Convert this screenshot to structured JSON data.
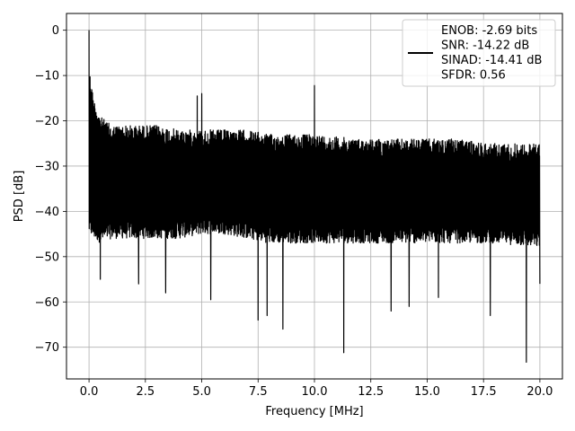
{
  "chart_data": {
    "type": "line",
    "xlabel": "Frequency [MHz]",
    "ylabel": "PSD [dB]",
    "xlim": [
      -1.0,
      21.0
    ],
    "ylim": [
      -77.0,
      3.7
    ],
    "x_ticks": [
      0.0,
      2.5,
      5.0,
      7.5,
      10.0,
      12.5,
      15.0,
      17.5,
      20.0
    ],
    "x_tick_labels": [
      "0.0",
      "2.5",
      "5.0",
      "7.5",
      "10.0",
      "12.5",
      "15.0",
      "17.5",
      "20.0"
    ],
    "y_ticks": [
      0,
      -10,
      -20,
      -30,
      -40,
      -50,
      -60,
      -70
    ],
    "y_tick_labels": [
      "0",
      "−10",
      "−20",
      "−30",
      "−40",
      "−50",
      "−60",
      "−70"
    ],
    "grid": true,
    "legend_position": "top-right",
    "legend_lines": [
      "ENOB: -2.69 bits",
      "SNR: -14.22 dB",
      "SINAD: -14.41 dB",
      "SFDR: 0.56"
    ],
    "series": [
      {
        "color": "#000000",
        "style": "noise-band",
        "x_range": [
          0.0,
          20.0
        ],
        "envelope": {
          "x": [
            0.0,
            0.2,
            0.5,
            1.0,
            2.0,
            3.0,
            4.0,
            5.0,
            6.0,
            7.0,
            8.0,
            10.0,
            12.0,
            14.0,
            16.0,
            18.0,
            20.0
          ],
          "upper": [
            -8,
            -15,
            -19,
            -21,
            -21,
            -21,
            -22,
            -22,
            -22,
            -22,
            -23,
            -23,
            -24,
            -24,
            -24,
            -25,
            -25
          ],
          "lower": [
            -45,
            -46,
            -47,
            -46,
            -46,
            -46,
            -46,
            -45,
            -45,
            -46,
            -47,
            -47,
            -47,
            -47,
            -47,
            -47,
            -48
          ]
        },
        "peaks": [
          {
            "x": 0.0,
            "y": 0.0
          },
          {
            "x": 4.8,
            "y": -14.5
          },
          {
            "x": 5.0,
            "y": -14.0
          },
          {
            "x": 10.0,
            "y": -12.2
          }
        ],
        "dips": [
          {
            "x": 0.5,
            "y": -55.0
          },
          {
            "x": 2.2,
            "y": -56.0
          },
          {
            "x": 3.4,
            "y": -58.0
          },
          {
            "x": 5.4,
            "y": -59.5
          },
          {
            "x": 7.5,
            "y": -64.0
          },
          {
            "x": 7.9,
            "y": -63.0
          },
          {
            "x": 8.6,
            "y": -66.0
          },
          {
            "x": 11.3,
            "y": -71.2
          },
          {
            "x": 13.4,
            "y": -62.0
          },
          {
            "x": 14.2,
            "y": -61.0
          },
          {
            "x": 15.5,
            "y": -59.0
          },
          {
            "x": 17.8,
            "y": -63.0
          },
          {
            "x": 19.4,
            "y": -73.3
          },
          {
            "x": 20.0,
            "y": -56.0
          }
        ]
      }
    ]
  }
}
